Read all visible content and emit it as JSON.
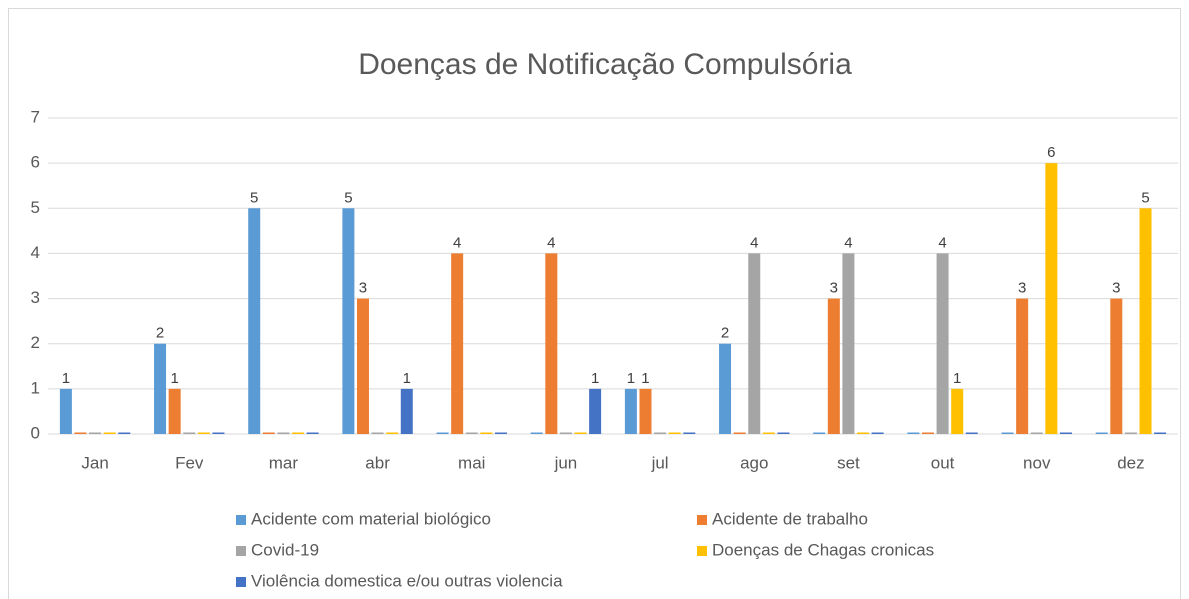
{
  "chart_data": {
    "type": "bar",
    "title": "Doenças de Notificação Compulsória",
    "categories": [
      "Jan",
      "Fev",
      "mar",
      "abr",
      "mai",
      "jun",
      "jul",
      "ago",
      "set",
      "out",
      "nov",
      "dez"
    ],
    "series": [
      {
        "name": "Acidente com material biológico",
        "color": "#5b9bd5",
        "values": [
          1,
          2,
          5,
          5,
          0,
          0,
          1,
          2,
          0,
          0,
          0,
          0
        ]
      },
      {
        "name": "Acidente de trabalho",
        "color": "#ed7d31",
        "values": [
          0,
          1,
          0,
          3,
          4,
          4,
          1,
          0,
          3,
          0,
          3,
          3
        ]
      },
      {
        "name": "Covid-19",
        "color": "#a5a5a5",
        "values": [
          0,
          0,
          0,
          0,
          0,
          0,
          0,
          4,
          4,
          4,
          0,
          0
        ]
      },
      {
        "name": "Doenças de Chagas cronicas",
        "color": "#ffc000",
        "values": [
          0,
          0,
          0,
          0,
          0,
          0,
          0,
          0,
          0,
          1,
          6,
          5
        ]
      },
      {
        "name": "Violência domestica e/ou outras violencia",
        "color": "#4472c4",
        "values": [
          0,
          0,
          0,
          1,
          0,
          1,
          0,
          0,
          0,
          0,
          0,
          0
        ]
      }
    ],
    "ylim": [
      0,
      7
    ],
    "yticks": [
      0,
      1,
      2,
      3,
      4,
      5,
      6,
      7
    ],
    "grid": true,
    "legend": "bottom"
  }
}
